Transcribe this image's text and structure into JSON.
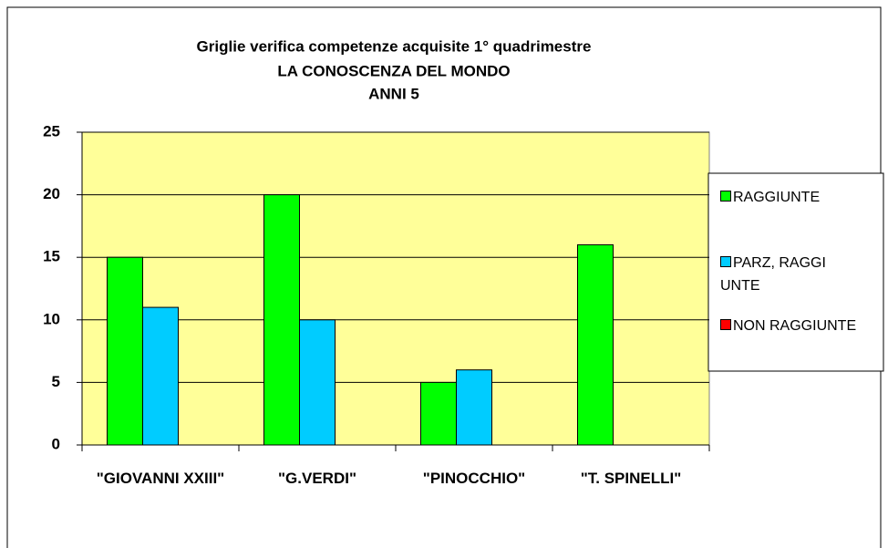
{
  "chart_data": {
    "type": "bar",
    "title": [
      "Griglie verifica competenze acquisite 1° quadrimestre",
      "LA CONOSCENZA DEL MONDO",
      "ANNI  5"
    ],
    "categories": [
      "\"GIOVANNI XXIII\"",
      "\"G.VERDI\"",
      "\"PINOCCHIO\"",
      "\"T. SPINELLI\""
    ],
    "series": [
      {
        "name": "RAGGIUNTE",
        "color": "#00ff00",
        "values": [
          15,
          20,
          5,
          16
        ]
      },
      {
        "name": "PARZ, RAGGI UNTE",
        "color": "#00ccff",
        "values": [
          11,
          10,
          6,
          0
        ]
      },
      {
        "name": "NON RAGGIUNTE",
        "color": "#ff0000",
        "values": [
          0,
          0,
          0,
          0
        ]
      }
    ],
    "ylim": [
      0,
      25
    ],
    "yticks": [
      0,
      5,
      10,
      15,
      20,
      25
    ],
    "grid": true,
    "legend": "right"
  }
}
